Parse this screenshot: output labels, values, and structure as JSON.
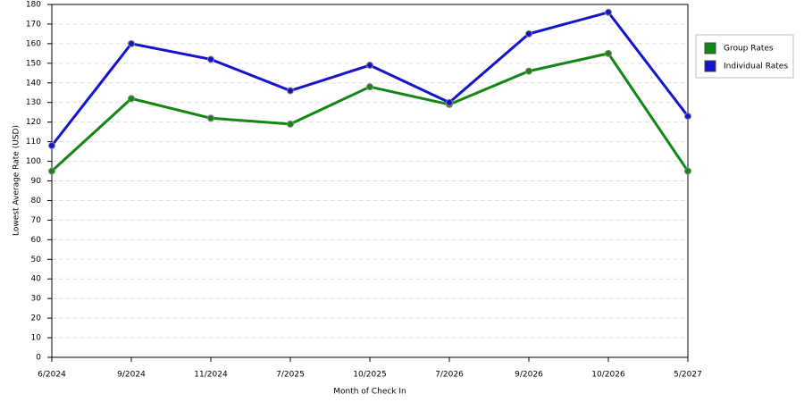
{
  "chart_data": {
    "type": "line",
    "x_label": "Month of Check In",
    "y_label": "Lowest Average Rate (USD)",
    "categories": [
      "6/2024",
      "9/2024",
      "11/2024",
      "7/2025",
      "10/2025",
      "7/2026",
      "9/2026",
      "10/2026",
      "5/2027"
    ],
    "series": [
      {
        "name": "Group Rates",
        "color": "#138613",
        "values": [
          95,
          132,
          122,
          119,
          138,
          129,
          146,
          155,
          95
        ]
      },
      {
        "name": "Individual Rates",
        "color": "#1414cc",
        "values": [
          108,
          160,
          152,
          136,
          149,
          130,
          165,
          176,
          123
        ]
      }
    ],
    "ylim": [
      0,
      180
    ],
    "yticks": [
      0,
      10,
      20,
      30,
      40,
      50,
      60,
      70,
      80,
      90,
      100,
      110,
      120,
      130,
      140,
      150,
      160,
      170,
      180
    ],
    "grid": true,
    "legend": "right"
  }
}
